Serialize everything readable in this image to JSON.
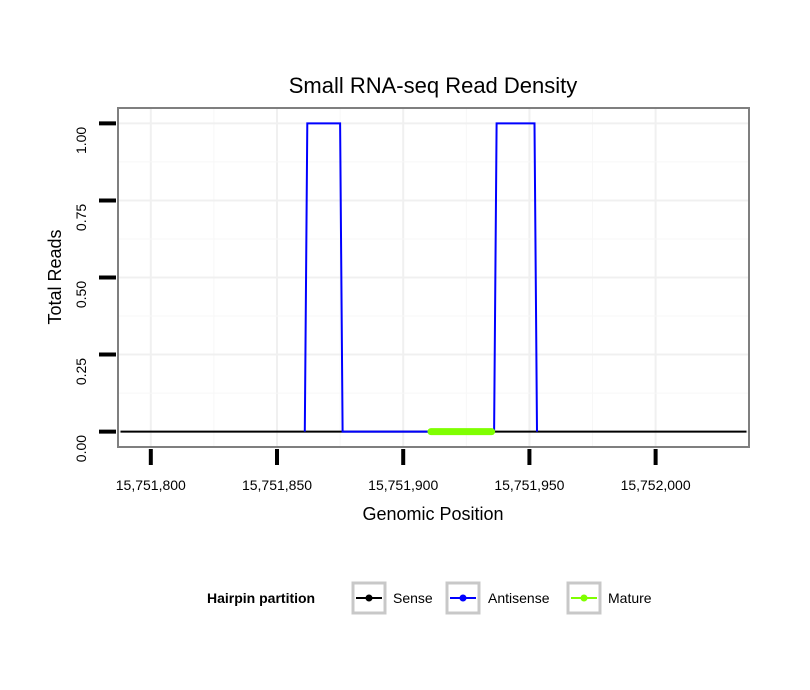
{
  "chart_data": {
    "type": "line",
    "title": "Small RNA-seq Read Density",
    "xlabel": "Genomic Position",
    "ylabel": "Total Reads",
    "xlim": [
      15751787,
      15752037
    ],
    "ylim": [
      -0.05,
      1.05
    ],
    "x_ticks": [
      15751800,
      15751850,
      15751900,
      15751950,
      15752000
    ],
    "x_tick_labels": [
      "15,751,800",
      "15,751,850",
      "15,751,900",
      "15,751,950",
      "15,752,000"
    ],
    "y_ticks": [
      0,
      0.25,
      0.5,
      0.75,
      1
    ],
    "y_tick_labels": [
      "0.00",
      "0.25",
      "0.50",
      "0.75",
      "1.00"
    ],
    "grid": true,
    "legend": {
      "title": "Hairpin partition",
      "placement": "bottom"
    },
    "series": [
      {
        "name": "Sense",
        "color": "#000000",
        "points": [
          [
            15751788,
            0
          ],
          [
            15752036,
            0
          ]
        ]
      },
      {
        "name": "Antisense",
        "color": "#0000ff",
        "points": [
          [
            15751861,
            0
          ],
          [
            15751862,
            1
          ],
          [
            15751875,
            1
          ],
          [
            15751876,
            0
          ],
          [
            15751936,
            0
          ],
          [
            15751937,
            1
          ],
          [
            15751952,
            1
          ],
          [
            15751953,
            0
          ]
        ]
      },
      {
        "name": "Mature",
        "color": "#7fff00",
        "points": [
          [
            15751911,
            0
          ],
          [
            15751935,
            0
          ]
        ]
      }
    ]
  }
}
